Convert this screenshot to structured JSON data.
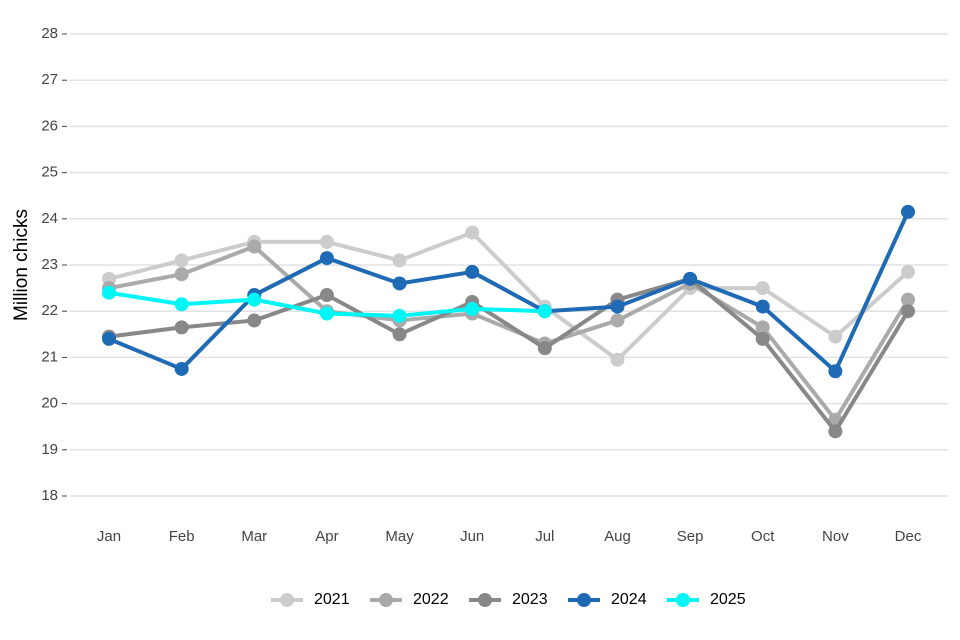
{
  "chart_data": {
    "type": "line",
    "y_label": "Million chicks",
    "categories": [
      "Jan",
      "Feb",
      "Mar",
      "Apr",
      "May",
      "Jun",
      "Jul",
      "Aug",
      "Sep",
      "Oct",
      "Nov",
      "Dec"
    ],
    "ylim": [
      18,
      28
    ],
    "yticks": [
      18,
      19,
      20,
      21,
      22,
      23,
      24,
      25,
      26,
      27,
      28
    ],
    "grid": true,
    "legend": "bottom",
    "series": [
      {
        "name": "2021",
        "color": "#cccccc",
        "values": [
          22.7,
          23.1,
          23.5,
          23.5,
          23.1,
          23.7,
          22.1,
          20.95,
          22.5,
          22.5,
          21.45,
          22.85
        ]
      },
      {
        "name": "2022",
        "color": "#aaaaaa",
        "values": [
          22.5,
          22.8,
          23.4,
          22.0,
          21.8,
          21.95,
          21.3,
          21.8,
          22.6,
          21.65,
          19.65,
          22.25
        ]
      },
      {
        "name": "2023",
        "color": "#888888",
        "values": [
          21.45,
          21.65,
          21.8,
          22.35,
          21.5,
          22.2,
          21.2,
          22.25,
          22.7,
          21.4,
          19.4,
          22.0
        ]
      },
      {
        "name": "2024",
        "color": "#1f6ab5",
        "values": [
          21.4,
          20.75,
          22.35,
          23.15,
          22.6,
          22.85,
          22.0,
          22.1,
          22.7,
          22.1,
          20.7,
          24.15
        ]
      },
      {
        "name": "2025",
        "color": "#00f5f5",
        "values": [
          22.4,
          22.15,
          22.25,
          21.95,
          21.9,
          22.05,
          22.0,
          null,
          null,
          null,
          null,
          null
        ]
      }
    ]
  }
}
